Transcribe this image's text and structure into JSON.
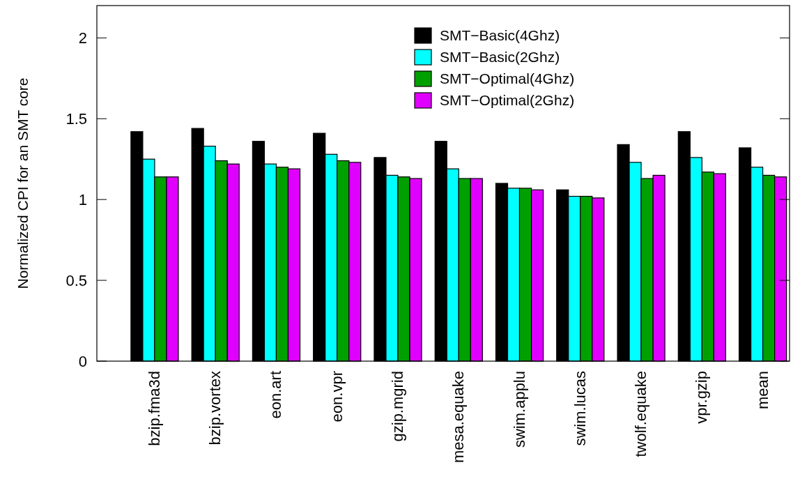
{
  "chart_data": {
    "type": "bar",
    "ylabel": "Normalized CPI for an SMT core",
    "categories": [
      "bzip.fma3d",
      "bzip.vortex",
      "eon.art",
      "eon.vpr",
      "gzip.mgrid",
      "mesa.equake",
      "swim.applu",
      "swim.lucas",
      "twolf.equake",
      "vpr.gzip",
      "mean"
    ],
    "series": [
      {
        "name": "SMT−Basic(4Ghz)",
        "color": "#000000",
        "values": [
          1.42,
          1.44,
          1.36,
          1.41,
          1.26,
          1.36,
          1.1,
          1.06,
          1.34,
          1.42,
          1.32
        ]
      },
      {
        "name": "SMT−Basic(2Ghz)",
        "color": "#00ffff",
        "values": [
          1.25,
          1.33,
          1.22,
          1.28,
          1.15,
          1.19,
          1.07,
          1.02,
          1.23,
          1.26,
          1.2
        ]
      },
      {
        "name": "SMT−Optimal(4Ghz)",
        "color": "#00a000",
        "values": [
          1.14,
          1.24,
          1.2,
          1.24,
          1.14,
          1.13,
          1.07,
          1.02,
          1.13,
          1.17,
          1.15
        ]
      },
      {
        "name": "SMT−Optimal(2Ghz)",
        "color": "#e000ff",
        "values": [
          1.14,
          1.22,
          1.19,
          1.23,
          1.13,
          1.13,
          1.06,
          1.01,
          1.15,
          1.16,
          1.14
        ]
      }
    ],
    "ylim": [
      0,
      2.2
    ],
    "yticks": [
      0,
      0.5,
      1,
      1.5,
      2
    ],
    "grid": false,
    "legend": "top"
  }
}
